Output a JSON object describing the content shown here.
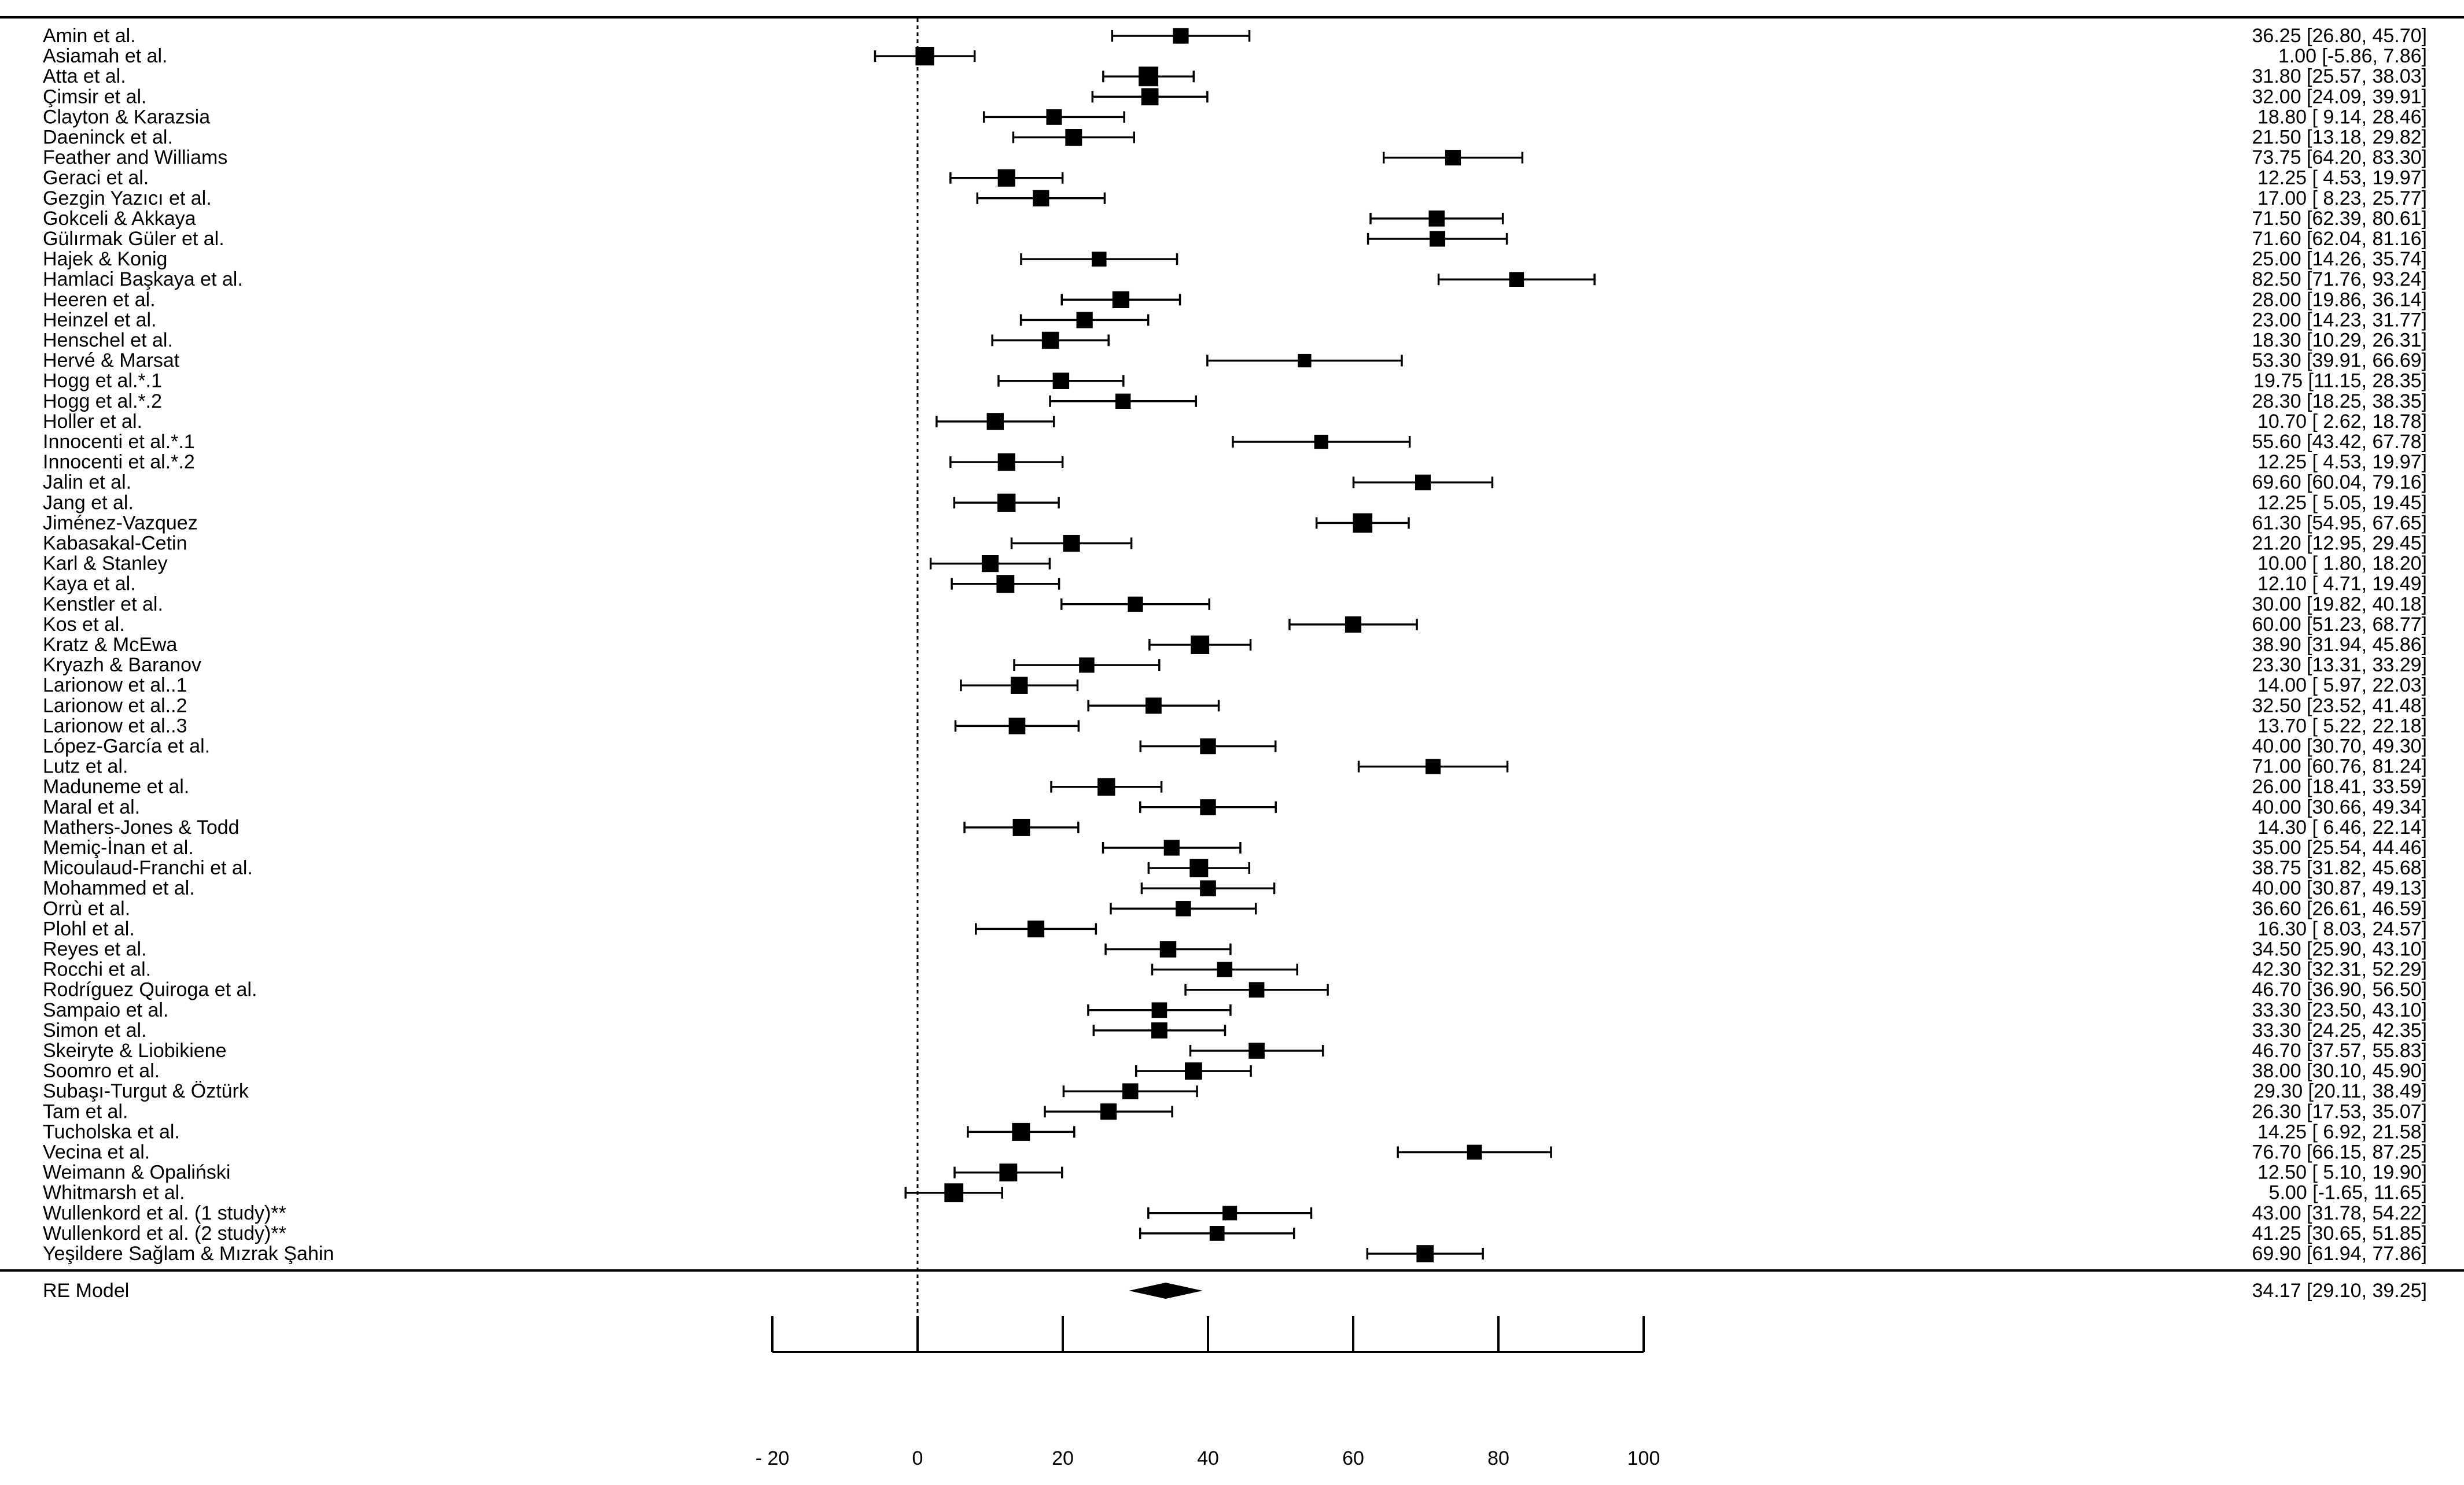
{
  "chart_data": {
    "type": "forest",
    "title": "",
    "xlabel": "",
    "xlim": [
      -20,
      100
    ],
    "xticks": [
      -20,
      0,
      20,
      40,
      60,
      80,
      100
    ],
    "xtick_labels": [
      "- 20",
      "0",
      "20",
      "40",
      "60",
      "80",
      "100"
    ],
    "reference_line": 0,
    "studies": [
      {
        "label": "Amin et al.",
        "est": 36.25,
        "lo": 26.8,
        "hi": 45.7,
        "ci_text": "36.25 [26.80, 45.70]"
      },
      {
        "label": "Asiamah et al.",
        "est": 1.0,
        "lo": -5.86,
        "hi": 7.86,
        "ci_text": "1.00 [-5.86,  7.86]"
      },
      {
        "label": "Atta et al.",
        "est": 31.8,
        "lo": 25.57,
        "hi": 38.03,
        "ci_text": "31.80 [25.57, 38.03]"
      },
      {
        "label": "Çimsir et al.",
        "est": 32.0,
        "lo": 24.09,
        "hi": 39.91,
        "ci_text": "32.00 [24.09, 39.91]"
      },
      {
        "label": "Clayton & Karazsia",
        "est": 18.8,
        "lo": 9.14,
        "hi": 28.46,
        "ci_text": "18.80 [ 9.14, 28.46]"
      },
      {
        "label": "Daeninck et al.",
        "est": 21.5,
        "lo": 13.18,
        "hi": 29.82,
        "ci_text": "21.50 [13.18, 29.82]"
      },
      {
        "label": "Feather and Williams",
        "est": 73.75,
        "lo": 64.2,
        "hi": 83.3,
        "ci_text": "73.75 [64.20, 83.30]"
      },
      {
        "label": "Geraci et al.",
        "est": 12.25,
        "lo": 4.53,
        "hi": 19.97,
        "ci_text": "12.25 [ 4.53, 19.97]"
      },
      {
        "label": "Gezgin Yazıcı et al.",
        "est": 17.0,
        "lo": 8.23,
        "hi": 25.77,
        "ci_text": "17.00 [ 8.23, 25.77]"
      },
      {
        "label": "Gokceli & Akkaya",
        "est": 71.5,
        "lo": 62.39,
        "hi": 80.61,
        "ci_text": "71.50 [62.39, 80.61]"
      },
      {
        "label": "Gülırmak Güler et al.",
        "est": 71.6,
        "lo": 62.04,
        "hi": 81.16,
        "ci_text": "71.60 [62.04, 81.16]"
      },
      {
        "label": "Hajek & Konig",
        "est": 25.0,
        "lo": 14.26,
        "hi": 35.74,
        "ci_text": "25.00 [14.26, 35.74]"
      },
      {
        "label": "Hamlaci Başkaya et al.",
        "est": 82.5,
        "lo": 71.76,
        "hi": 93.24,
        "ci_text": "82.50 [71.76, 93.24]"
      },
      {
        "label": "Heeren et al.",
        "est": 28.0,
        "lo": 19.86,
        "hi": 36.14,
        "ci_text": "28.00 [19.86, 36.14]"
      },
      {
        "label": "Heinzel et al.",
        "est": 23.0,
        "lo": 14.23,
        "hi": 31.77,
        "ci_text": "23.00 [14.23, 31.77]"
      },
      {
        "label": "Henschel et al.",
        "est": 18.3,
        "lo": 10.29,
        "hi": 26.31,
        "ci_text": "18.30 [10.29, 26.31]"
      },
      {
        "label": "Hervé & Marsat",
        "est": 53.3,
        "lo": 39.91,
        "hi": 66.69,
        "ci_text": "53.30 [39.91, 66.69]"
      },
      {
        "label": "Hogg et al.*.1",
        "est": 19.75,
        "lo": 11.15,
        "hi": 28.35,
        "ci_text": "19.75 [11.15, 28.35]"
      },
      {
        "label": "Hogg et al.*.2",
        "est": 28.3,
        "lo": 18.25,
        "hi": 38.35,
        "ci_text": "28.30 [18.25, 38.35]"
      },
      {
        "label": "Holler et al.",
        "est": 10.7,
        "lo": 2.62,
        "hi": 18.78,
        "ci_text": "10.70 [ 2.62, 18.78]"
      },
      {
        "label": "Innocenti et al.*.1",
        "est": 55.6,
        "lo": 43.42,
        "hi": 67.78,
        "ci_text": "55.60 [43.42, 67.78]"
      },
      {
        "label": "Innocenti et al.*.2",
        "est": 12.25,
        "lo": 4.53,
        "hi": 19.97,
        "ci_text": "12.25 [ 4.53, 19.97]"
      },
      {
        "label": "Jalin et al.",
        "est": 69.6,
        "lo": 60.04,
        "hi": 79.16,
        "ci_text": "69.60 [60.04, 79.16]"
      },
      {
        "label": "Jang et al.",
        "est": 12.25,
        "lo": 5.05,
        "hi": 19.45,
        "ci_text": "12.25 [ 5.05, 19.45]"
      },
      {
        "label": "Jiménez-Vazquez",
        "est": 61.3,
        "lo": 54.95,
        "hi": 67.65,
        "ci_text": "61.30 [54.95, 67.65]"
      },
      {
        "label": "Kabasakal-Cetin",
        "est": 21.2,
        "lo": 12.95,
        "hi": 29.45,
        "ci_text": "21.20 [12.95, 29.45]"
      },
      {
        "label": "Karl & Stanley",
        "est": 10.0,
        "lo": 1.8,
        "hi": 18.2,
        "ci_text": "10.00 [ 1.80, 18.20]"
      },
      {
        "label": "Kaya et al.",
        "est": 12.1,
        "lo": 4.71,
        "hi": 19.49,
        "ci_text": "12.10 [ 4.71, 19.49]"
      },
      {
        "label": "Kenstler et al.",
        "est": 30.0,
        "lo": 19.82,
        "hi": 40.18,
        "ci_text": "30.00 [19.82, 40.18]"
      },
      {
        "label": "Kos et al.",
        "est": 60.0,
        "lo": 51.23,
        "hi": 68.77,
        "ci_text": "60.00 [51.23, 68.77]"
      },
      {
        "label": "Kratz & McEwa",
        "est": 38.9,
        "lo": 31.94,
        "hi": 45.86,
        "ci_text": "38.90 [31.94, 45.86]"
      },
      {
        "label": "Kryazh & Baranov",
        "est": 23.3,
        "lo": 13.31,
        "hi": 33.29,
        "ci_text": "23.30 [13.31, 33.29]"
      },
      {
        "label": "Larionow et al..1",
        "est": 14.0,
        "lo": 5.97,
        "hi": 22.03,
        "ci_text": "14.00 [ 5.97, 22.03]"
      },
      {
        "label": "Larionow et al..2",
        "est": 32.5,
        "lo": 23.52,
        "hi": 41.48,
        "ci_text": "32.50 [23.52, 41.48]"
      },
      {
        "label": "Larionow et al..3",
        "est": 13.7,
        "lo": 5.22,
        "hi": 22.18,
        "ci_text": "13.70 [ 5.22, 22.18]"
      },
      {
        "label": "López-García et al.",
        "est": 40.0,
        "lo": 30.7,
        "hi": 49.3,
        "ci_text": "40.00 [30.70, 49.30]"
      },
      {
        "label": "Lutz et al.",
        "est": 71.0,
        "lo": 60.76,
        "hi": 81.24,
        "ci_text": "71.00 [60.76, 81.24]"
      },
      {
        "label": "Maduneme et al.",
        "est": 26.0,
        "lo": 18.41,
        "hi": 33.59,
        "ci_text": "26.00 [18.41, 33.59]"
      },
      {
        "label": "Maral et al.",
        "est": 40.0,
        "lo": 30.66,
        "hi": 49.34,
        "ci_text": "40.00 [30.66, 49.34]"
      },
      {
        "label": "Mathers-Jones & Todd",
        "est": 14.3,
        "lo": 6.46,
        "hi": 22.14,
        "ci_text": "14.30 [ 6.46, 22.14]"
      },
      {
        "label": "Memiç-İnan et al.",
        "est": 35.0,
        "lo": 25.54,
        "hi": 44.46,
        "ci_text": "35.00 [25.54, 44.46]"
      },
      {
        "label": "Micoulaud-Franchi et al.",
        "est": 38.75,
        "lo": 31.82,
        "hi": 45.68,
        "ci_text": "38.75 [31.82, 45.68]"
      },
      {
        "label": "Mohammed et al.",
        "est": 40.0,
        "lo": 30.87,
        "hi": 49.13,
        "ci_text": "40.00 [30.87, 49.13]"
      },
      {
        "label": "Orrù et al.",
        "est": 36.6,
        "lo": 26.61,
        "hi": 46.59,
        "ci_text": "36.60 [26.61, 46.59]"
      },
      {
        "label": "Plohl et al.",
        "est": 16.3,
        "lo": 8.03,
        "hi": 24.57,
        "ci_text": "16.30 [ 8.03, 24.57]"
      },
      {
        "label": "Reyes et al.",
        "est": 34.5,
        "lo": 25.9,
        "hi": 43.1,
        "ci_text": "34.50 [25.90, 43.10]"
      },
      {
        "label": "Rocchi et al.",
        "est": 42.3,
        "lo": 32.31,
        "hi": 52.29,
        "ci_text": "42.30 [32.31, 52.29]"
      },
      {
        "label": "Rodríguez Quiroga et al.",
        "est": 46.7,
        "lo": 36.9,
        "hi": 56.5,
        "ci_text": "46.70 [36.90, 56.50]"
      },
      {
        "label": "Sampaio et al.",
        "est": 33.3,
        "lo": 23.5,
        "hi": 43.1,
        "ci_text": "33.30 [23.50, 43.10]"
      },
      {
        "label": "Simon et al.",
        "est": 33.3,
        "lo": 24.25,
        "hi": 42.35,
        "ci_text": "33.30 [24.25, 42.35]"
      },
      {
        "label": "Skeiryte & Liobikiene",
        "est": 46.7,
        "lo": 37.57,
        "hi": 55.83,
        "ci_text": "46.70 [37.57, 55.83]"
      },
      {
        "label": "Soomro et al.",
        "est": 38.0,
        "lo": 30.1,
        "hi": 45.9,
        "ci_text": "38.00 [30.10, 45.90]"
      },
      {
        "label": "Subaşı-Turgut & Öztürk",
        "est": 29.3,
        "lo": 20.11,
        "hi": 38.49,
        "ci_text": "29.30 [20.11, 38.49]"
      },
      {
        "label": "Tam et al.",
        "est": 26.3,
        "lo": 17.53,
        "hi": 35.07,
        "ci_text": "26.30 [17.53, 35.07]"
      },
      {
        "label": "Tucholska et al.",
        "est": 14.25,
        "lo": 6.92,
        "hi": 21.58,
        "ci_text": "14.25 [ 6.92, 21.58]"
      },
      {
        "label": "Vecina et al.",
        "est": 76.7,
        "lo": 66.15,
        "hi": 87.25,
        "ci_text": "76.70 [66.15, 87.25]"
      },
      {
        "label": "Weimann & Opaliński",
        "est": 12.5,
        "lo": 5.1,
        "hi": 19.9,
        "ci_text": "12.50 [ 5.10, 19.90]"
      },
      {
        "label": "Whitmarsh et al.",
        "est": 5.0,
        "lo": -1.65,
        "hi": 11.65,
        "ci_text": "5.00 [-1.65, 11.65]"
      },
      {
        "label": "Wullenkord et al. (1 study)**",
        "est": 43.0,
        "lo": 31.78,
        "hi": 54.22,
        "ci_text": "43.00 [31.78, 54.22]"
      },
      {
        "label": "Wullenkord et al. (2 study)**",
        "est": 41.25,
        "lo": 30.65,
        "hi": 51.85,
        "ci_text": "41.25 [30.65, 51.85]"
      },
      {
        "label": "Yeşildere Sağlam & Mızrak Şahin",
        "est": 69.9,
        "lo": 61.94,
        "hi": 77.86,
        "ci_text": "69.90 [61.94, 77.86]"
      }
    ],
    "summary": {
      "label": "RE Model",
      "est": 34.17,
      "lo": 29.1,
      "hi": 39.25,
      "ci_text": "34.17 [29.10, 39.25]"
    }
  }
}
